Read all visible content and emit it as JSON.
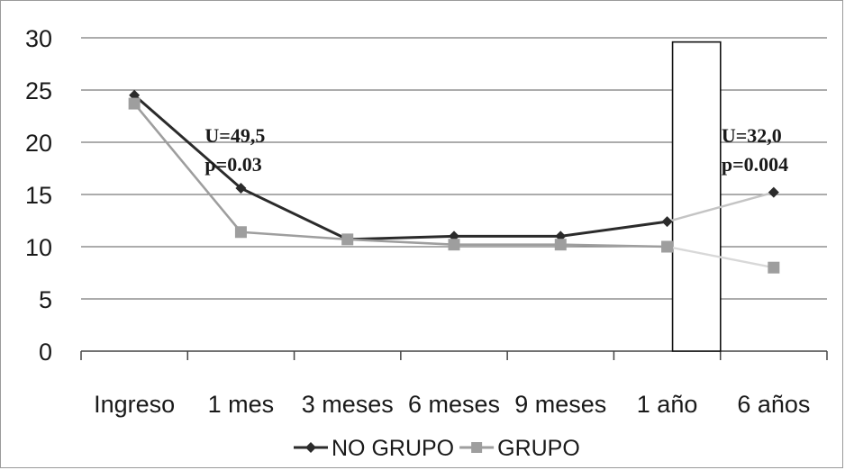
{
  "chart_data": {
    "type": "line",
    "categories": [
      "Ingreso",
      "1 mes",
      "3 meses",
      "6 meses",
      "9 meses",
      "1 año",
      "6 años"
    ],
    "series": [
      {
        "name": "NO GRUPO",
        "values": [
          24.5,
          15.6,
          10.7,
          11.0,
          11.0,
          12.4,
          15.2
        ],
        "color": "#2b2b2b",
        "marker": "diamond"
      },
      {
        "name": "GRUPO",
        "values": [
          23.7,
          11.4,
          10.7,
          10.2,
          10.2,
          10.0,
          8.0
        ],
        "color": "#9e9e9e",
        "marker": "square"
      }
    ],
    "faded_final_segment": {
      "NO GRUPO": "#c4c4c4",
      "GRUPO": "#d8d8d8"
    },
    "y_ticks": [
      "0",
      "5",
      "10",
      "15",
      "20",
      "25",
      "30"
    ],
    "ylim": [
      0,
      30
    ],
    "grid": "horizontal",
    "legend_position": "bottom",
    "annotations": [
      {
        "lines": [
          "U=49,5",
          "p=0.03"
        ],
        "near": "1 mes"
      },
      {
        "lines": [
          "U=32,0",
          "p=0.004"
        ],
        "near": "6 años"
      }
    ],
    "highlight_box": {
      "from_value": 0,
      "to_value": 29.6,
      "category": "1 año"
    }
  }
}
